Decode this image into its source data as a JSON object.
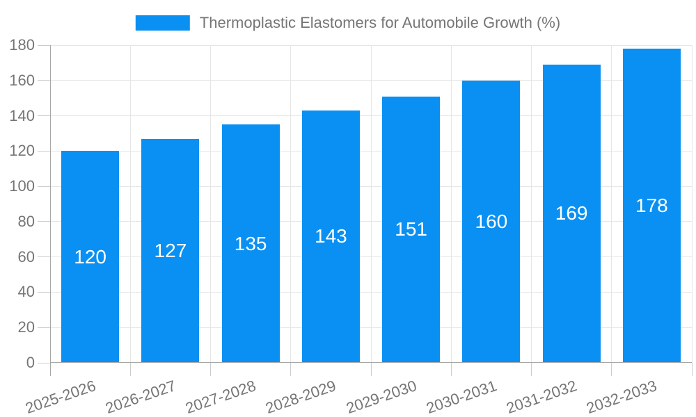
{
  "chart_data": {
    "type": "bar",
    "title": "Thermoplastic Elastomers for Automobile Growth (%)",
    "categories": [
      "2025-2026",
      "2026-2027",
      "2027-2028",
      "2028-2029",
      "2029-2030",
      "2030-2031",
      "2031-2032",
      "2032-2033"
    ],
    "values": [
      120,
      127,
      135,
      143,
      151,
      160,
      169,
      178
    ],
    "xlabel": "",
    "ylabel": "",
    "ylim": [
      0,
      180
    ],
    "yticks": [
      0,
      20,
      40,
      60,
      80,
      100,
      120,
      140,
      160,
      180
    ],
    "grid": true,
    "legend_position": "top",
    "bar_labels_inside": true,
    "colors": {
      "bar": "#0990f2",
      "bar_label": "#ffffff",
      "axis_text": "#757575",
      "gridline": "#e6e6e6",
      "tick": "#cccccc",
      "axis_line": "#a6a6a6",
      "background": "#ffffff"
    }
  }
}
